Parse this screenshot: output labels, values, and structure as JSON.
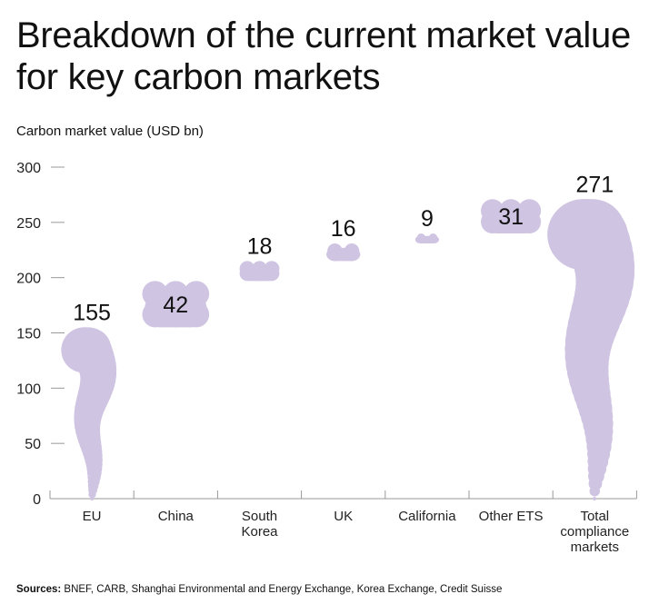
{
  "chart_data": {
    "type": "waterfall",
    "title": "Breakdown of the current market value for key carbon markets",
    "ylabel": "Carbon market value (USD bn)",
    "ylim": [
      0,
      300
    ],
    "yticks": [
      0,
      50,
      100,
      150,
      200,
      250,
      300
    ],
    "grid": false,
    "fill_color": "#cfc4e1",
    "categories": [
      {
        "label": [
          "EU"
        ],
        "value": 155,
        "base": 0,
        "label_position": "above"
      },
      {
        "label": [
          "China"
        ],
        "value": 42,
        "base": 155,
        "label_position": "inside"
      },
      {
        "label": [
          "South",
          "Korea"
        ],
        "value": 18,
        "base": 197,
        "label_position": "above"
      },
      {
        "label": [
          "UK"
        ],
        "value": 16,
        "base": 215,
        "label_position": "above"
      },
      {
        "label": [
          "California"
        ],
        "value": 9,
        "base": 231,
        "label_position": "above"
      },
      {
        "label": [
          "Other ETS"
        ],
        "value": 31,
        "base": 240,
        "label_position": "inside"
      },
      {
        "label": [
          "Total",
          "compliance",
          "markets"
        ],
        "value": 271,
        "base": 0,
        "label_position": "above"
      }
    ]
  },
  "sources": {
    "label": "Sources:",
    "text": " BNEF, CARB, Shanghai Environmental and Energy Exchange, Korea Exchange, Credit Suisse"
  }
}
